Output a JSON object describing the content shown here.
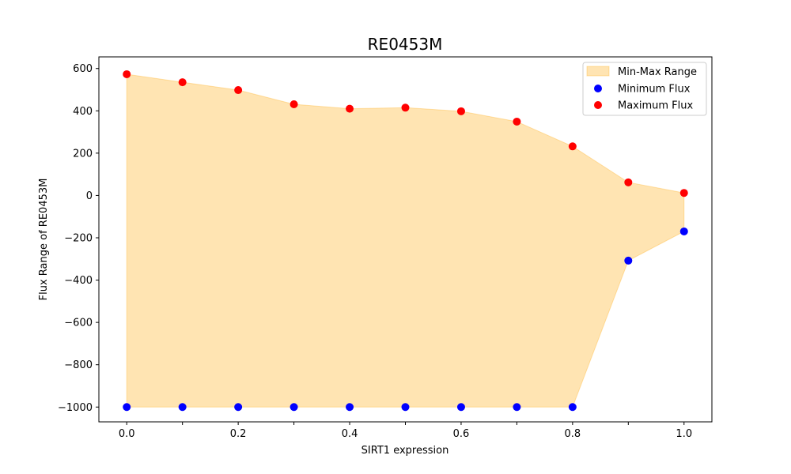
{
  "chart_data": {
    "type": "scatter",
    "title": "RE0453M",
    "xlabel": "SIRT1 expression",
    "ylabel": "Flux Range of RE0453M",
    "xlim": [
      -0.05,
      1.05
    ],
    "ylim": [
      -1070,
      655
    ],
    "xticks": [
      0.0,
      0.1,
      0.2,
      0.3,
      0.4,
      0.5,
      0.6,
      0.7,
      0.8,
      0.9,
      1.0
    ],
    "xtick_labels": [
      "0.0",
      "0.2",
      "0.4",
      "0.6",
      "0.8",
      "1.0"
    ],
    "xtick_label_values": [
      0.0,
      0.2,
      0.4,
      0.6,
      0.8,
      1.0
    ],
    "yticks": [
      -1000,
      -800,
      -600,
      -400,
      -200,
      0,
      200,
      400,
      600
    ],
    "ytick_labels": [
      "−1000",
      "−800",
      "−600",
      "−400",
      "−200",
      "0",
      "200",
      "400",
      "600"
    ],
    "x": [
      0.0,
      0.1,
      0.2,
      0.3,
      0.4,
      0.5,
      0.6,
      0.7,
      0.8,
      0.9,
      1.0
    ],
    "series": [
      {
        "name": "Minimum Flux",
        "color": "#0000ff",
        "values": [
          -1000,
          -1000,
          -1000,
          -1000,
          -1000,
          -1000,
          -1000,
          -1000,
          -1000,
          -308,
          -170
        ]
      },
      {
        "name": "Maximum Flux",
        "color": "#ff0000",
        "values": [
          573,
          535,
          498,
          431,
          410,
          415,
          398,
          349,
          232,
          62,
          12
        ]
      }
    ],
    "fill": {
      "name": "Min-Max Range",
      "color": "#ffa500",
      "opacity": 0.3
    },
    "legend_position": "top-right",
    "grid": false
  }
}
